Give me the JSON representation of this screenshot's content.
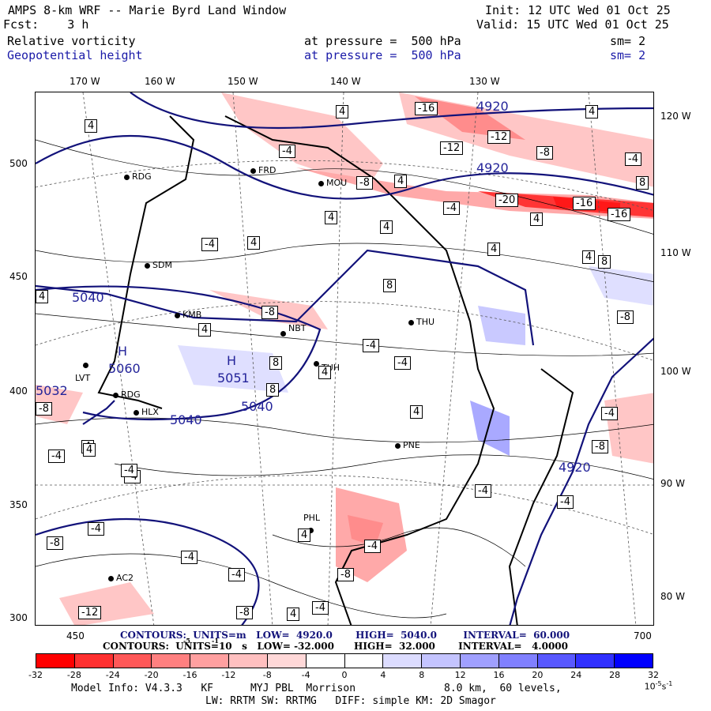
{
  "header": {
    "line1_left": "AMPS 8-km WRF -- Marie Byrd Land Window",
    "line1_right": "Init: 12 UTC Wed 01 Oct 25",
    "line2_left": "Fcst:    3 h",
    "line2_right": "Valid: 15 UTC Wed 01 Oct 25",
    "field1_name": "Relative vorticity",
    "field1_level": "at pressure =  500 hPa",
    "field1_sm": "sm= 2",
    "field2_name": "Geopotential height",
    "field2_level": "at pressure =  500 hPa",
    "field2_sm": "sm= 2"
  },
  "colors": {
    "vorticity_text": "#000000",
    "geopotential_text": "#1a1aa8",
    "height_contour": "#12127a",
    "negative_strong": "#ff0000",
    "positive_strong": "#0000ff"
  },
  "top_lon_labels": [
    "170 W",
    "160 W",
    "150 W",
    "140 W",
    "130 W"
  ],
  "right_lon_labels": [
    "120 W",
    "110 W",
    "100 W",
    "90 W",
    "80 W"
  ],
  "left_y_ticks": [
    "500",
    "450",
    "400",
    "350",
    "300"
  ],
  "bottom_x_ticks": [
    "450",
    "700"
  ],
  "map_labels": {
    "stations": [
      "RDG",
      "FRD",
      "MOU",
      "SDM",
      "KMB",
      "NBT",
      "THU",
      "PNE",
      "PHL",
      "AC2",
      "LVT",
      "RDG",
      "HLX",
      "TUH"
    ],
    "height_values": [
      "4920",
      "4920",
      "5040",
      "5040",
      "5040",
      "5060",
      "5051",
      "5032",
      "4920"
    ],
    "highs": [
      "H",
      "H"
    ],
    "vort_values": [
      "4",
      "-4",
      "-16",
      "-12",
      "-12",
      "-8",
      "-4",
      "4",
      "8",
      "-20",
      "-16",
      "-16",
      "4",
      "-8",
      "4",
      "4",
      "-4",
      "4",
      "8",
      "4",
      "-8",
      "4",
      "-4",
      "4",
      "4",
      "-8",
      "4",
      "8",
      "-8",
      "-4",
      "8",
      "4",
      "-4",
      "4",
      "8",
      "-4",
      "-4",
      "4",
      "-8",
      "-4",
      "4",
      "-4",
      "-4",
      "-8",
      "-4",
      "-12",
      "-8",
      "-4",
      "4",
      "4",
      "-4",
      "-8",
      "-4",
      "4",
      "-4",
      "-4"
    ]
  },
  "contour_info": {
    "height_line": "CONTOURS:  UNITS=m   LOW=  4920.0       HIGH=  5040.0        INTERVAL=  60.000",
    "vort_line": "CONTOURS:  UNITS=10   s   LOW= -32.000      HIGH=  32.000       INTERVAL=   4.0000",
    "vort_units_exp": "-5",
    "vort_units_exp2": "-1"
  },
  "legend": {
    "labels": [
      "-32",
      "-28",
      "-24",
      "-20",
      "-16",
      "-12",
      "-8",
      "-4",
      "0",
      "4",
      "8",
      "12",
      "16",
      "20",
      "24",
      "28",
      "32"
    ],
    "units": "10",
    "units_exp": "-5",
    "units_s": "s",
    "units_s_exp": "-1",
    "colors": [
      "#ff0000",
      "#ff3030",
      "#ff5858",
      "#ff8080",
      "#ffa0a0",
      "#ffc0c0",
      "#ffd8d8",
      "#ffffff",
      "#ffffff",
      "#dcdcff",
      "#c4c4ff",
      "#a0a0ff",
      "#8080ff",
      "#5858ff",
      "#3030ff",
      "#0000ff"
    ]
  },
  "footer": {
    "line1_left": "Model Info: V4.3.3   KF      MYJ PBL  Morrison",
    "line1_right": "8.0 km,  60 levels,",
    "line2": "LW: RRTM SW: RRTMG   DIFF: simple KM: 2D Smagor"
  }
}
